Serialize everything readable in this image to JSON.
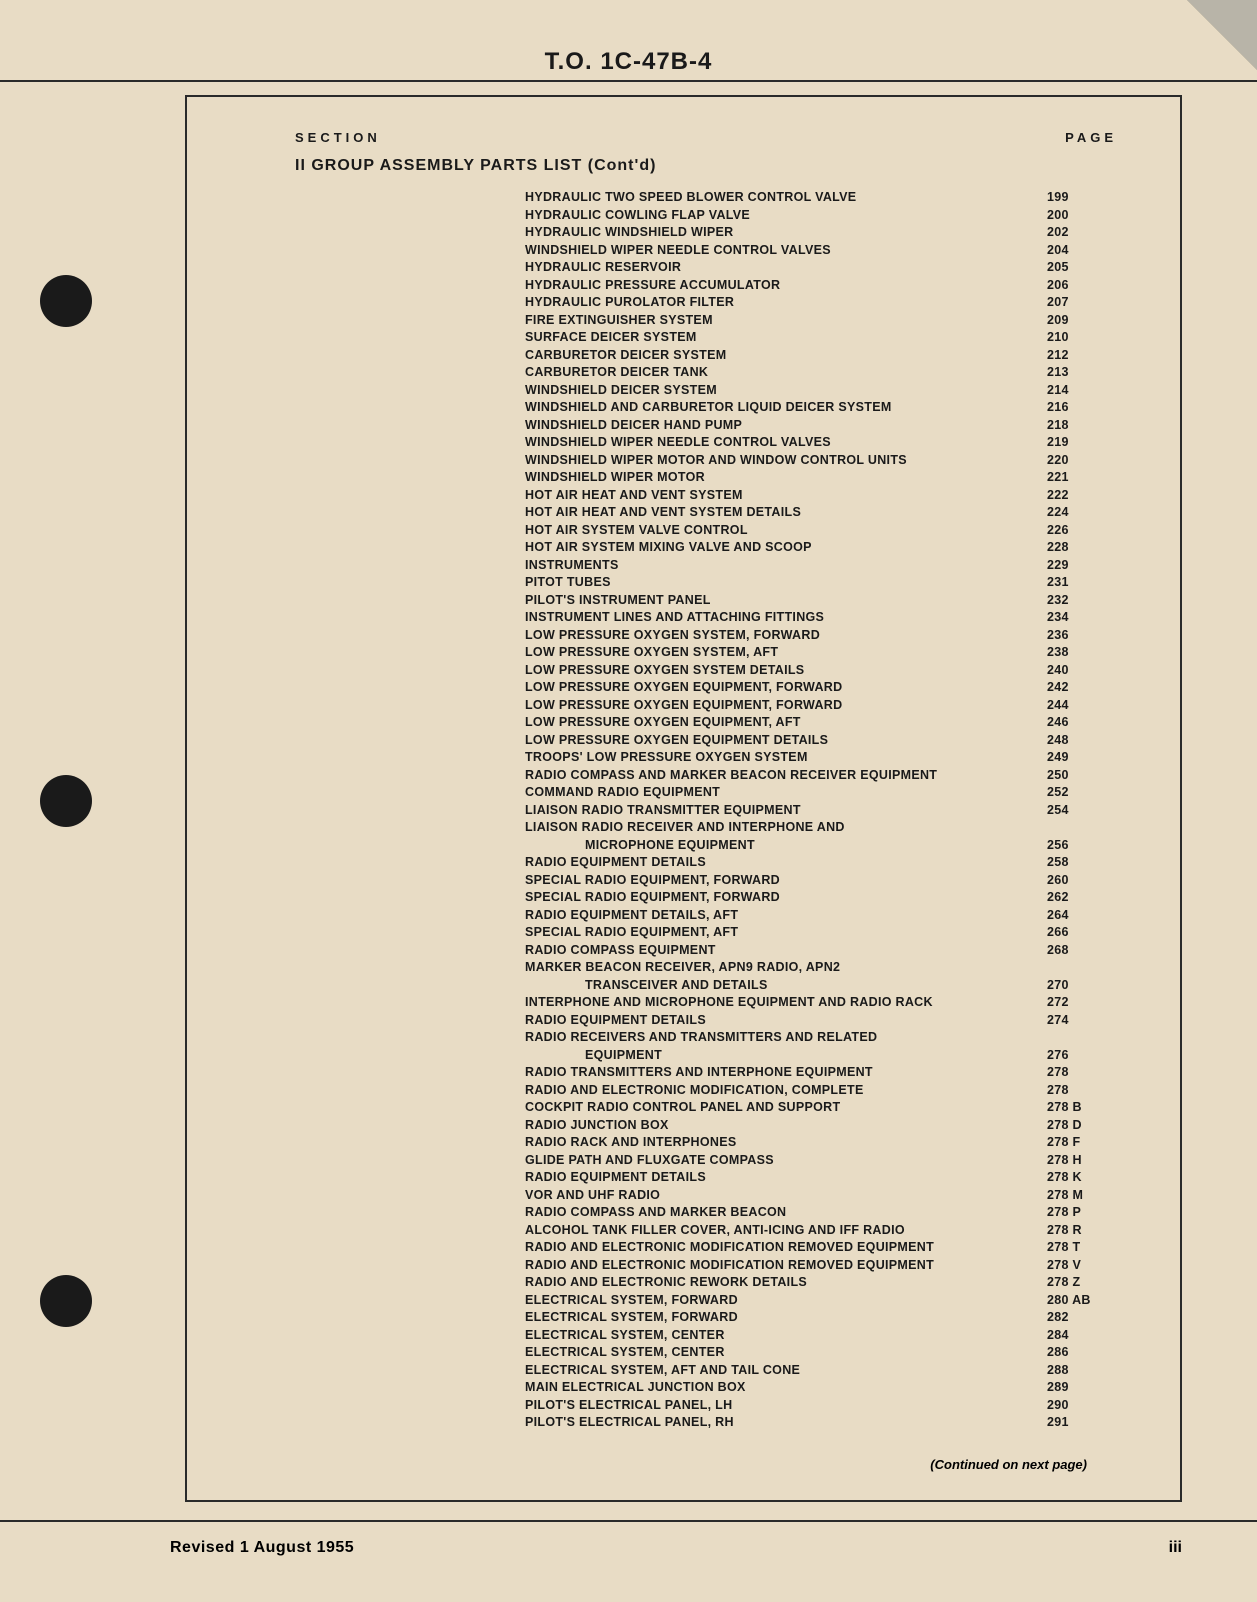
{
  "doc_header": "T.O. 1C-47B-4",
  "column_headers": {
    "left": "SECTION",
    "right": "PAGE"
  },
  "section_title": "II GROUP ASSEMBLY PARTS LIST (Cont'd)",
  "entries": [
    {
      "title": "HYDRAULIC TWO SPEED BLOWER CONTROL VALVE",
      "page": "199"
    },
    {
      "title": "HYDRAULIC COWLING FLAP VALVE",
      "page": "200"
    },
    {
      "title": "HYDRAULIC WINDSHIELD WIPER",
      "page": "202"
    },
    {
      "title": "WINDSHIELD WIPER NEEDLE CONTROL VALVES",
      "page": "204"
    },
    {
      "title": "HYDRAULIC RESERVOIR",
      "page": "205"
    },
    {
      "title": "HYDRAULIC PRESSURE ACCUMULATOR",
      "page": "206"
    },
    {
      "title": "HYDRAULIC PUROLATOR FILTER",
      "page": "207"
    },
    {
      "title": "FIRE EXTINGUISHER SYSTEM",
      "page": "209"
    },
    {
      "title": "SURFACE DEICER SYSTEM",
      "page": "210"
    },
    {
      "title": "CARBURETOR DEICER SYSTEM",
      "page": "212"
    },
    {
      "title": "CARBURETOR DEICER TANK",
      "page": "213"
    },
    {
      "title": "WINDSHIELD DEICER SYSTEM",
      "page": "214"
    },
    {
      "title": "WINDSHIELD AND CARBURETOR LIQUID DEICER SYSTEM",
      "page": "216"
    },
    {
      "title": "WINDSHIELD DEICER HAND PUMP",
      "page": "218"
    },
    {
      "title": "WINDSHIELD WIPER NEEDLE CONTROL VALVES",
      "page": "219"
    },
    {
      "title": "WINDSHIELD WIPER MOTOR AND WINDOW CONTROL UNITS",
      "page": "220"
    },
    {
      "title": "WINDSHIELD WIPER MOTOR",
      "page": "221"
    },
    {
      "title": "HOT AIR HEAT AND VENT SYSTEM",
      "page": "222"
    },
    {
      "title": "HOT AIR HEAT AND VENT SYSTEM DETAILS",
      "page": "224"
    },
    {
      "title": "HOT AIR SYSTEM VALVE CONTROL",
      "page": "226"
    },
    {
      "title": "HOT AIR SYSTEM MIXING VALVE AND SCOOP",
      "page": "228"
    },
    {
      "title": "INSTRUMENTS",
      "page": "229"
    },
    {
      "title": "PITOT TUBES",
      "page": "231"
    },
    {
      "title": "PILOT'S INSTRUMENT PANEL",
      "page": "232"
    },
    {
      "title": "INSTRUMENT LINES AND ATTACHING FITTINGS",
      "page": "234"
    },
    {
      "title": "LOW PRESSURE OXYGEN SYSTEM, FORWARD",
      "page": "236"
    },
    {
      "title": "LOW PRESSURE OXYGEN SYSTEM, AFT",
      "page": "238"
    },
    {
      "title": "LOW PRESSURE OXYGEN SYSTEM DETAILS",
      "page": "240"
    },
    {
      "title": "LOW PRESSURE OXYGEN EQUIPMENT, FORWARD",
      "page": "242"
    },
    {
      "title": "LOW PRESSURE OXYGEN EQUIPMENT, FORWARD",
      "page": "244"
    },
    {
      "title": "LOW PRESSURE OXYGEN EQUIPMENT, AFT",
      "page": "246"
    },
    {
      "title": "LOW PRESSURE OXYGEN EQUIPMENT DETAILS",
      "page": "248"
    },
    {
      "title": "TROOPS' LOW PRESSURE OXYGEN SYSTEM",
      "page": "249"
    },
    {
      "title": "RADIO COMPASS AND MARKER BEACON RECEIVER EQUIPMENT",
      "page": "250"
    },
    {
      "title": "COMMAND RADIO EQUIPMENT",
      "page": "252"
    },
    {
      "title": "LIAISON RADIO TRANSMITTER EQUIPMENT",
      "page": "254"
    },
    {
      "title": "LIAISON RADIO RECEIVER AND INTERPHONE AND",
      "page": ""
    },
    {
      "title": "MICROPHONE EQUIPMENT",
      "page": "256",
      "indent": true
    },
    {
      "title": "RADIO EQUIPMENT DETAILS",
      "page": "258"
    },
    {
      "title": "SPECIAL RADIO EQUIPMENT, FORWARD",
      "page": "260"
    },
    {
      "title": "SPECIAL RADIO EQUIPMENT, FORWARD",
      "page": "262"
    },
    {
      "title": "RADIO EQUIPMENT DETAILS, AFT",
      "page": "264"
    },
    {
      "title": "SPECIAL RADIO EQUIPMENT, AFT",
      "page": "266"
    },
    {
      "title": "RADIO COMPASS EQUIPMENT",
      "page": "268"
    },
    {
      "title": "MARKER BEACON RECEIVER, APN9 RADIO, APN2",
      "page": ""
    },
    {
      "title": "TRANSCEIVER AND DETAILS",
      "page": "270",
      "indent": true
    },
    {
      "title": "INTERPHONE AND MICROPHONE EQUIPMENT AND RADIO RACK",
      "page": "272"
    },
    {
      "title": "RADIO EQUIPMENT DETAILS",
      "page": "274"
    },
    {
      "title": "RADIO RECEIVERS AND TRANSMITTERS AND RELATED",
      "page": ""
    },
    {
      "title": "EQUIPMENT",
      "page": "276",
      "indent": true
    },
    {
      "title": "RADIO TRANSMITTERS AND INTERPHONE EQUIPMENT",
      "page": "278"
    },
    {
      "title": "RADIO AND ELECTRONIC MODIFICATION, COMPLETE",
      "page": "278"
    },
    {
      "title": "COCKPIT RADIO CONTROL PANEL AND SUPPORT",
      "page": "278 B"
    },
    {
      "title": "RADIO JUNCTION BOX",
      "page": "278 D"
    },
    {
      "title": "RADIO RACK AND INTERPHONES",
      "page": "278 F"
    },
    {
      "title": "GLIDE PATH AND FLUXGATE COMPASS",
      "page": "278 H"
    },
    {
      "title": "RADIO EQUIPMENT DETAILS",
      "page": "278 K"
    },
    {
      "title": "VOR AND UHF RADIO",
      "page": "278 M"
    },
    {
      "title": "RADIO COMPASS AND MARKER BEACON",
      "page": "278 P"
    },
    {
      "title": "ALCOHOL TANK FILLER COVER, ANTI-ICING AND IFF RADIO",
      "page": "278 R"
    },
    {
      "title": "RADIO AND ELECTRONIC MODIFICATION REMOVED EQUIPMENT",
      "page": "278 T"
    },
    {
      "title": "RADIO AND ELECTRONIC MODIFICATION REMOVED EQUIPMENT",
      "page": "278 V"
    },
    {
      "title": "RADIO AND ELECTRONIC REWORK DETAILS",
      "page": "278 Z"
    },
    {
      "title": "ELECTRICAL SYSTEM, FORWARD",
      "page": "280 AB"
    },
    {
      "title": "ELECTRICAL SYSTEM, FORWARD",
      "page": "282"
    },
    {
      "title": "ELECTRICAL SYSTEM, CENTER",
      "page": "284"
    },
    {
      "title": "ELECTRICAL SYSTEM, CENTER",
      "page": "286"
    },
    {
      "title": "ELECTRICAL SYSTEM, AFT AND TAIL CONE",
      "page": "288"
    },
    {
      "title": "MAIN ELECTRICAL JUNCTION BOX",
      "page": "289"
    },
    {
      "title": "PILOT'S ELECTRICAL PANEL, LH",
      "page": "290"
    },
    {
      "title": "PILOT'S ELECTRICAL PANEL, RH",
      "page": "291"
    }
  ],
  "continued_text": "(Continued on next page)",
  "footer": {
    "left": "Revised 1 August 1955",
    "right": "iii"
  },
  "colors": {
    "page_bg": "#e8dcc5",
    "text": "#1a1a1a",
    "hole": "#1a1a1a",
    "outer_bg": "#b8b4a8"
  }
}
